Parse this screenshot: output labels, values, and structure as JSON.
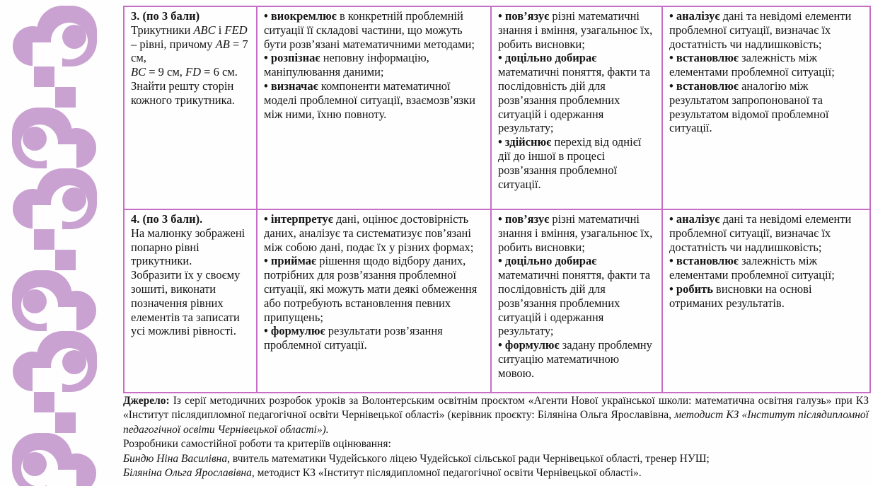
{
  "theme": {
    "accent": "#c9a2d1",
    "table-border": "#c66ec6"
  },
  "decoration": {
    "name": "purple-chain-pattern",
    "color": "#c9a2d1"
  },
  "table": {
    "rows": [
      {
        "cells": [
          {
            "title": "3. (по 3 бали)",
            "items": [
              {
                "bullet": false,
                "bold": "",
                "text": "Трикутники ABC і FED – рівні, причому AB = 7 см,\nBC = 9 см, FD = 6 см.\nЗнайти решту сторін кожного трикутника."
              }
            ]
          },
          {
            "items": [
              {
                "bullet": true,
                "bold": "виокремлює",
                "text": " в конкретній проблемній ситуації її складові частини, що можуть бути розв’язані математичними методами;"
              },
              {
                "bullet": true,
                "bold": "розпізнає",
                "text": " неповну інформацію, маніпулювання даними;"
              },
              {
                "bullet": true,
                "bold": "визначає",
                "text": " компоненти математичної моделі проблемної ситуації, взаємозв’язки між ними, їхню повноту."
              }
            ]
          },
          {
            "items": [
              {
                "bullet": true,
                "bold": "пов’язує",
                "text": " різні математичні знання і вміння, узагальнює їх, робить висновки;"
              },
              {
                "bullet": true,
                "bold": "доцільно добирає",
                "text": " математичні поняття, факти та послідовність дій для розв’язання проблемних ситуацій і одержання результату;"
              },
              {
                "bullet": true,
                "bold": "здійснює",
                "text": " перехід від однієї дії до іншої в процесі розв’язання проблемної ситуації."
              }
            ]
          },
          {
            "items": [
              {
                "bullet": true,
                "bold": "аналізує",
                "text": " дані та невідомі елементи проблемної ситуації, визначає їх достатність чи надлишковість;"
              },
              {
                "bullet": true,
                "bold": "встановлює",
                "text": " залежність між елементами проблемної ситуації;"
              },
              {
                "bullet": true,
                "bold": "встановлює",
                "text": " аналогію між результатом запропонованої та результатом відомої проблемної ситуації."
              }
            ]
          }
        ]
      },
      {
        "cells": [
          {
            "title": "4. (по 3 бали).",
            "items": [
              {
                "bullet": false,
                "bold": "",
                "text": "На малюнку зображені попарно рівні трикутники.\nЗобразити їх у своєму зошиті, виконати позначення рівних елементів та записати усі можливі рівності."
              }
            ]
          },
          {
            "items": [
              {
                "bullet": true,
                "bold": "інтерпретує",
                "text": " дані, оцінює достовірність даних, аналізує та систематизує пов’язані між собою дані, подає їх у різних формах;"
              },
              {
                "bullet": true,
                "bold": "приймає",
                "text": " рішення щодо відбору даних, потрібних для розв’язання проблемної ситуації, які можуть мати деякі обмеження або потребують встановлення певних припущень;"
              },
              {
                "bullet": true,
                "bold": "формулює",
                "text": " результати розв’язання проблемної ситуації."
              }
            ]
          },
          {
            "items": [
              {
                "bullet": true,
                "bold": "пов’язує",
                "text": " різні математичні знання і вміння, узагальнює їх, робить висновки;"
              },
              {
                "bullet": true,
                "bold": "доцільно добирає",
                "text": " математичні поняття, факти та послідовність дій для розв’язання проблемних ситуацій і одержання результату;"
              },
              {
                "bullet": true,
                "bold": "формулює",
                "text": " задану проблемну ситуацію математичною мовою."
              }
            ]
          },
          {
            "items": [
              {
                "bullet": true,
                "bold": "аналізує",
                "text": " дані та невідомі елементи проблемної ситуації, визначає їх достатність чи надлишковість;"
              },
              {
                "bullet": true,
                "bold": "встановлює",
                "text": " залежність між елементами проблемної ситуації;"
              },
              {
                "bullet": true,
                "bold": "робить",
                "text": " висновки на основі отриманих результатів."
              }
            ]
          }
        ]
      }
    ]
  },
  "footer": {
    "source_bold": "Джерело:",
    "source_text": " Із серії методичних розробок уроків за Волонтерським освітнім проєктом «Агенти Нової української школи: математична освітня галузь» при КЗ «Інститут післядипломної педагогічної освіти Чернівецької області» (керівник проєкту: Біляніна Ольга Ярославівна, ",
    "source_italic": "методист КЗ «Інститут післядипломної педагогічної освіти Чернівецької області»).",
    "developers_heading": "Розробники самостійної роботи та критеріїв оцінювання:",
    "developers": [
      {
        "name": "Биндю Ніна Василівна",
        "rest": ", вчитель математики Чудейського ліцею Чудейської сільської ради Чернівецької області, тренер НУШ;"
      },
      {
        "name": "Біляніна Ольга Ярославівна",
        "rest": ", методист КЗ «Інститут післядипломної педагогічної освіти Чернівецької області»."
      }
    ]
  }
}
